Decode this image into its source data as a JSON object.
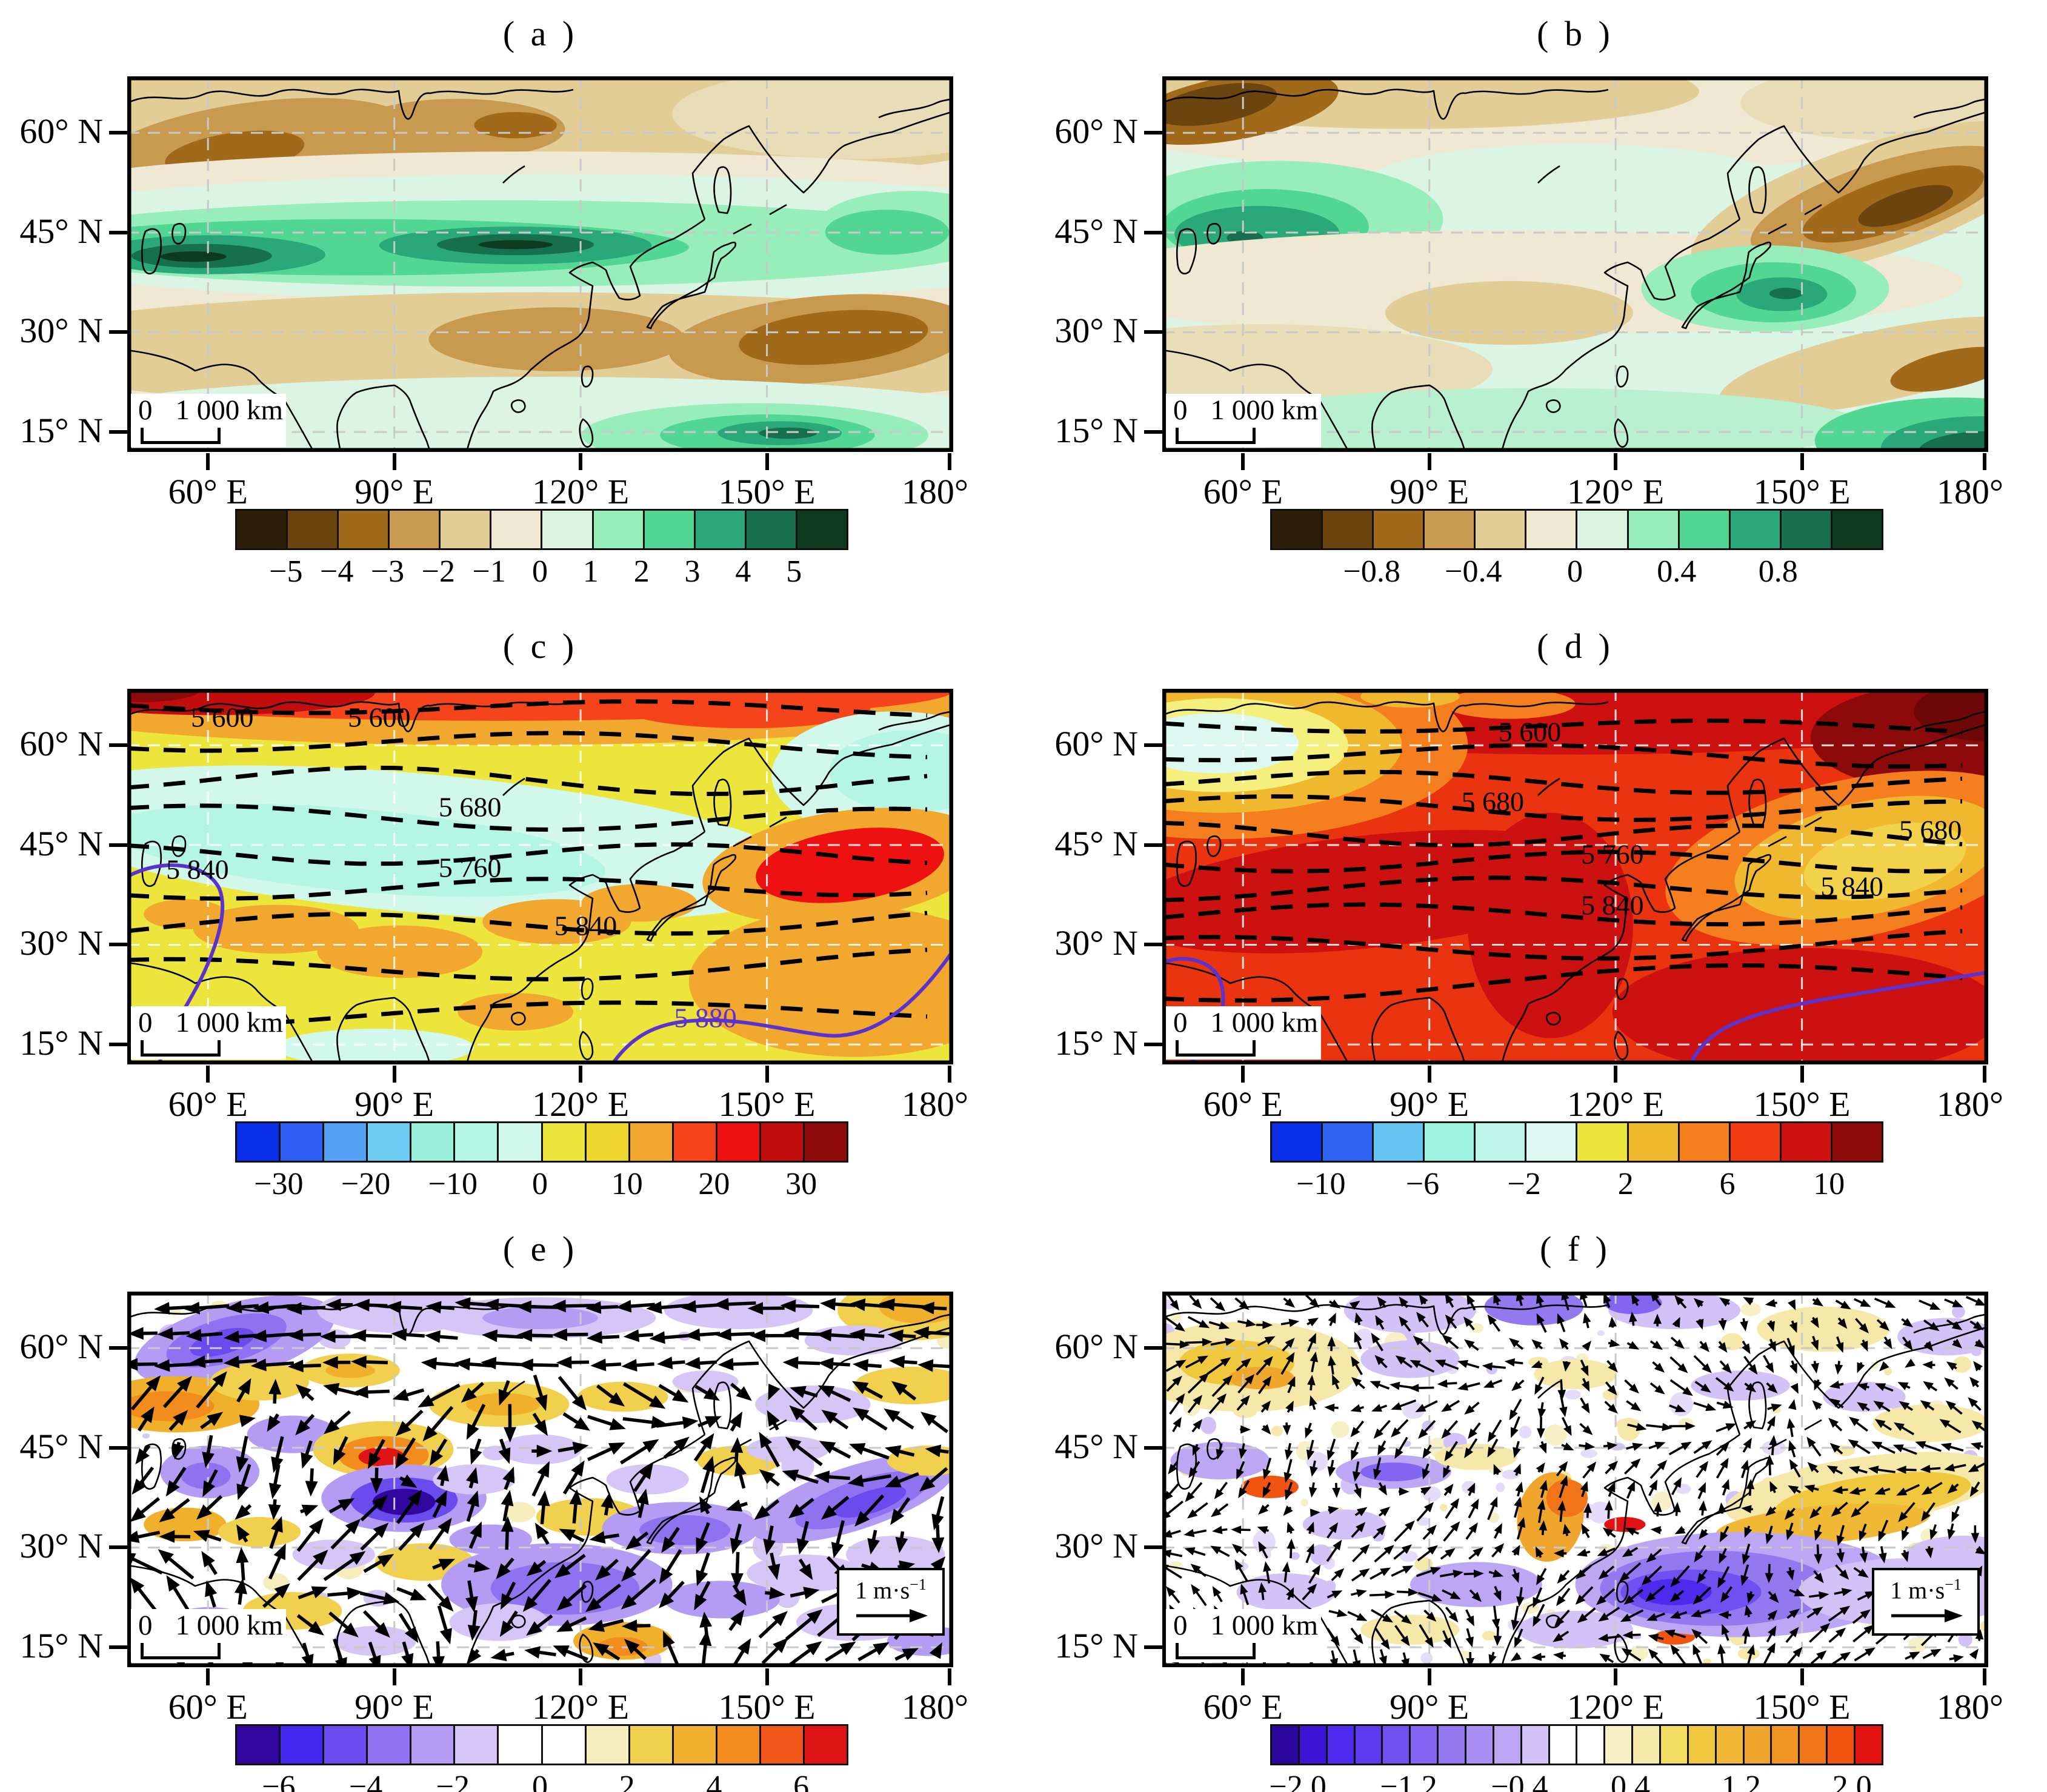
{
  "chart_data": {
    "type": "contour-map-figure",
    "layout": "2 columns x 3 rows of geographic anomaly maps over Asia / Northwest Pacific",
    "shared": {
      "lat_ticks": [
        "60° N",
        "45° N",
        "30° N",
        "15° N"
      ],
      "lon_ticks": [
        "60° E",
        "90° E",
        "120° E",
        "150° E",
        "180°"
      ],
      "lat_tick_values_deg_n": [
        60,
        45,
        30,
        15
      ],
      "lon_tick_values_deg_e": [
        60,
        90,
        120,
        150,
        180
      ],
      "scale_bar": {
        "zero_label": "0",
        "distance_label": "1 000 km"
      },
      "grid": "dashed graticule at tick latitudes/longitudes"
    },
    "panels": [
      {
        "id": "a",
        "label": "( a )",
        "type": "filled-contour-map",
        "colormap": "brown-negative to green-positive",
        "field_description": "Zonal bands: brown negative centers near 55N/60E and 30N/150E, dark-green positive band along 38-45N and green center near 15N/150E",
        "colorbar": {
          "colors": [
            "#2e1e08",
            "#6b4410",
            "#a16a1a",
            "#c89a50",
            "#e2cd96",
            "#efe8d3",
            "#dcf4e4",
            "#97eebb",
            "#52d694",
            "#2aa87a",
            "#17704d",
            "#0e3a20"
          ],
          "tick_labels": [
            "−5",
            "−4",
            "−3",
            "−2",
            "−1",
            "0",
            "1",
            "2",
            "3",
            "4",
            "5"
          ],
          "tick_boundary_indices": [
            1,
            2,
            3,
            4,
            5,
            6,
            7,
            8,
            9,
            10,
            11
          ]
        }
      },
      {
        "id": "b",
        "label": "( b )",
        "type": "filled-contour-map",
        "colormap": "brown-negative to green-positive",
        "field_description": "Brown center top-left, green center near 45N/60E, strong brown center near 48N/160E, green center over Japan, dark green in bottom-right corner",
        "colorbar": {
          "colors": [
            "#2e1e08",
            "#6b4410",
            "#a16a1a",
            "#c89a50",
            "#e2cd96",
            "#efe8d3",
            "#dcf4e4",
            "#97eebb",
            "#52d694",
            "#2aa87a",
            "#17704d",
            "#0e3a20"
          ],
          "tick_labels": [
            "−0.8",
            "−0.4",
            "0",
            "0.4",
            "0.8"
          ],
          "tick_boundary_indices": [
            2,
            4,
            6,
            8,
            10
          ]
        }
      },
      {
        "id": "c",
        "label": "( c )",
        "type": "filled-contour-map with dashed geopotential-height contours",
        "colormap": "blue-negative to red-positive",
        "field_description": "Red band along northern edge, pale-cyan band 45-55N, yellow base, orange patches, red center near 35N/165E, solid purple 5880 contour in the south",
        "colorbar": {
          "colors": [
            "#0b2ee8",
            "#2f5ff2",
            "#55a2f5",
            "#6fcdf5",
            "#9af0da",
            "#b4f5e4",
            "#d2f8ec",
            "#ece63c",
            "#eed52e",
            "#f2a82e",
            "#f5431c",
            "#ee1111",
            "#c10d0d",
            "#8c0a0a"
          ],
          "tick_labels": [
            "−30",
            "−20",
            "−10",
            "0",
            "10",
            "20",
            "30"
          ],
          "tick_boundary_indices": [
            1,
            3,
            5,
            7,
            9,
            11,
            13
          ]
        },
        "contour_labels": [
          {
            "text": "5 600",
            "fx": 0.115,
            "fy": 0.075,
            "color": "#000000"
          },
          {
            "text": "5 600",
            "fx": 0.305,
            "fy": 0.075,
            "color": "#000000"
          },
          {
            "text": "5 680",
            "fx": 0.415,
            "fy": 0.315,
            "color": "#000000"
          },
          {
            "text": "5 760",
            "fx": 0.415,
            "fy": 0.475,
            "color": "#000000"
          },
          {
            "text": "5 840",
            "fx": 0.085,
            "fy": 0.48,
            "color": "#000000"
          },
          {
            "text": "5 840",
            "fx": 0.555,
            "fy": 0.63,
            "color": "#000000"
          },
          {
            "text": "5 880",
            "fx": 0.7,
            "fy": 0.875,
            "color": "#5b33cc"
          }
        ]
      },
      {
        "id": "d",
        "label": "( d )",
        "type": "filled-contour-map with dashed geopotential-height contours",
        "colormap": "blue-negative to red-positive",
        "field_description": "Mostly red; pale-cyan/yellow center near 58N/55E, dark-red areas top band, top-right corner, central Asia and southeast of Japan; pale yellow-orange center near 40N/150E; solid purple contour in the south",
        "colorbar": {
          "colors": [
            "#0b2ee8",
            "#2f63f2",
            "#66c4f2",
            "#9df2e0",
            "#bdf5e8",
            "#dcf8f0",
            "#ece63c",
            "#f0b82e",
            "#f57f1e",
            "#f03c14",
            "#cd1010",
            "#8c0a0a"
          ],
          "tick_labels": [
            "−10",
            "−6",
            "−2",
            "2",
            "6",
            "10"
          ],
          "tick_boundary_indices": [
            1,
            3,
            5,
            7,
            9,
            11
          ]
        },
        "contour_labels": [
          {
            "text": "5 600",
            "fx": 0.445,
            "fy": 0.115,
            "color": "#000000"
          },
          {
            "text": "5 680",
            "fx": 0.4,
            "fy": 0.3,
            "color": "#000000"
          },
          {
            "text": "5 680",
            "fx": 0.93,
            "fy": 0.375,
            "color": "#000000"
          },
          {
            "text": "5 760",
            "fx": 0.545,
            "fy": 0.44,
            "color": "#000000"
          },
          {
            "text": "5 840",
            "fx": 0.545,
            "fy": 0.575,
            "color": "#000000"
          },
          {
            "text": "5 840",
            "fx": 0.835,
            "fy": 0.525,
            "color": "#000000"
          }
        ]
      },
      {
        "id": "e",
        "label": "( e )",
        "type": "vector-anomaly-map with filled contours",
        "colormap": "purple-negative to orange-positive",
        "field_description": "Wind-vector anomalies (black arrows) over purple/orange shaded centers; westward flow along the north; red center near 38N/88E with dark purple center just south; purple centers south China Sea and 35N/165E",
        "colorbar": {
          "colors": [
            "#31079f",
            "#4526ee",
            "#6a4cee",
            "#8f72f0",
            "#b49cf4",
            "#d6c6f7",
            "#ffffff",
            "#ffffff",
            "#f5eebc",
            "#f0d04c",
            "#f0b02c",
            "#f28c1c",
            "#f2571a",
            "#e01414"
          ],
          "tick_labels": [
            "−6",
            "−4",
            "−2",
            "0",
            "2",
            "4",
            "6"
          ],
          "tick_boundary_indices": [
            1,
            3,
            5,
            7,
            9,
            11,
            13
          ]
        },
        "vector_ref": {
          "value": "1 m·s",
          "exponent": "−1"
        }
      },
      {
        "id": "f",
        "label": "( f )",
        "type": "vector-anomaly-map with filled contours",
        "colormap": "purple-negative to orange-positive",
        "field_description": "Fine-scale wind-vector anomalies; large purple center 20-30N east of the Philippines/Taiwan, orange band near 35N east of Japan, scattered small purple and orange patches",
        "colorbar": {
          "colors": [
            "#2b079e",
            "#3b14d6",
            "#4c2aee",
            "#5c3cee",
            "#6f50f0",
            "#8265f0",
            "#9379f0",
            "#a78ef2",
            "#bda7f5",
            "#d3c2f7",
            "#ffffff",
            "#ffffff",
            "#f7f0c6",
            "#f5e8a8",
            "#f2dc62",
            "#f0c83e",
            "#f0b834",
            "#f0a62c",
            "#f09422",
            "#f07518",
            "#f0540f",
            "#e21212"
          ],
          "tick_labels": [
            "−2.0",
            "−1.2",
            "−0.4",
            "0.4",
            "1.2",
            "2.0"
          ],
          "tick_boundary_indices": [
            1,
            5,
            9,
            13,
            17,
            21
          ]
        },
        "vector_ref": {
          "value": "1 m·s",
          "exponent": "−1"
        }
      }
    ]
  }
}
